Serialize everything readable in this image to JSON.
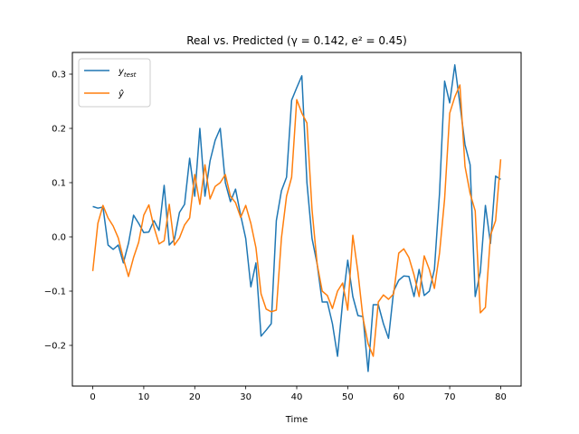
{
  "chart_data": {
    "type": "line",
    "title": "Real vs. Predicted (γ = 0.142, e² = 0.45)",
    "xlabel": "Time",
    "ylabel": "",
    "xlim": [
      -4,
      84
    ],
    "ylim": [
      -0.275,
      0.34
    ],
    "xticks": [
      0,
      10,
      20,
      30,
      40,
      50,
      60,
      70,
      80
    ],
    "yticks": [
      -0.2,
      -0.1,
      0.0,
      0.1,
      0.2,
      0.3
    ],
    "ytick_labels": [
      "−0.2",
      "−0.1",
      "0.0",
      "0.1",
      "0.2",
      "0.3"
    ],
    "grid": false,
    "legend_position": "top-left",
    "series": [
      {
        "name": "y_test",
        "legend_label": "ytest",
        "color": "#1f77b4",
        "values": [
          0.056,
          0.053,
          0.055,
          -0.015,
          -0.023,
          -0.015,
          -0.048,
          -0.012,
          0.04,
          0.025,
          0.008,
          0.009,
          0.03,
          0.012,
          0.095,
          -0.015,
          -0.005,
          0.045,
          0.06,
          0.145,
          0.075,
          0.2,
          0.075,
          0.14,
          0.178,
          0.2,
          0.1,
          0.065,
          0.088,
          0.04,
          -0.003,
          -0.092,
          -0.048,
          -0.183,
          -0.172,
          -0.16,
          0.03,
          0.085,
          0.11,
          0.252,
          0.275,
          0.297,
          0.1,
          -0.003,
          -0.05,
          -0.12,
          -0.12,
          -0.16,
          -0.22,
          -0.12,
          -0.043,
          -0.11,
          -0.145,
          -0.147,
          -0.248,
          -0.125,
          -0.125,
          -0.16,
          -0.187,
          -0.1,
          -0.08,
          -0.072,
          -0.073,
          -0.11,
          -0.06,
          -0.108,
          -0.1,
          -0.06,
          0.08,
          0.287,
          0.247,
          0.317,
          0.245,
          0.17,
          0.133,
          -0.11,
          -0.065,
          0.058,
          -0.012,
          0.112,
          0.106
        ]
      },
      {
        "name": "y_hat",
        "legend_label": "ŷ",
        "color": "#ff7f0e",
        "values": [
          -0.063,
          0.025,
          0.058,
          0.035,
          0.02,
          -0.002,
          -0.04,
          -0.073,
          -0.038,
          -0.01,
          0.04,
          0.059,
          0.018,
          -0.013,
          -0.007,
          0.06,
          -0.015,
          -0.002,
          0.022,
          0.035,
          0.115,
          0.06,
          0.133,
          0.07,
          0.093,
          0.1,
          0.115,
          0.075,
          0.063,
          0.036,
          0.058,
          0.025,
          -0.02,
          -0.105,
          -0.133,
          -0.138,
          -0.135,
          -0.002,
          0.075,
          0.11,
          0.253,
          0.228,
          0.21,
          0.05,
          -0.05,
          -0.1,
          -0.108,
          -0.132,
          -0.1,
          -0.085,
          -0.135,
          0.003,
          -0.065,
          -0.15,
          -0.197,
          -0.22,
          -0.12,
          -0.107,
          -0.115,
          -0.105,
          -0.03,
          -0.022,
          -0.038,
          -0.07,
          -0.11,
          -0.035,
          -0.06,
          -0.095,
          -0.03,
          0.07,
          0.228,
          0.258,
          0.28,
          0.13,
          0.08,
          0.048,
          -0.14,
          -0.13,
          0.003,
          0.03,
          0.143
        ]
      }
    ]
  }
}
